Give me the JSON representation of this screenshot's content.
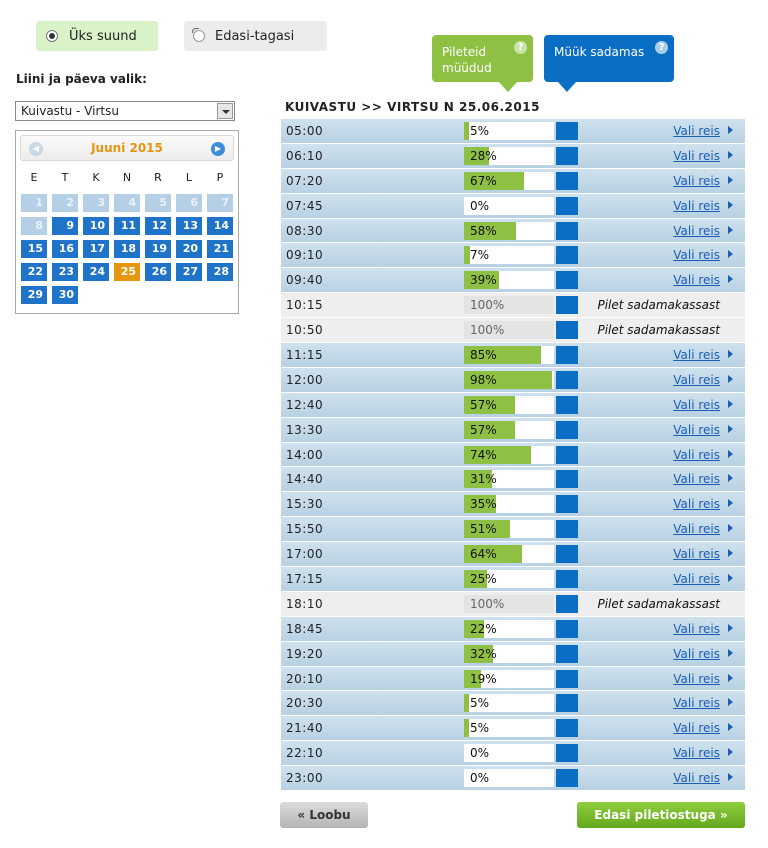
{
  "direction": {
    "one_way": "Üks suund",
    "round_trip": "Edasi-tagasi"
  },
  "legend": {
    "sold": "Pileteid müüdud",
    "harbor": "Müük sadamas",
    "help": "?"
  },
  "route": {
    "label": "Liini ja päeva valik:",
    "selected": "Kuivastu - Virtsu"
  },
  "calendar": {
    "title": "Juuni 2015",
    "weekdays": [
      "E",
      "T",
      "K",
      "N",
      "R",
      "L",
      "P"
    ],
    "past_days": [
      "1",
      "2",
      "3",
      "4",
      "5",
      "6",
      "7",
      "8"
    ],
    "available_days": [
      "9",
      "10",
      "11",
      "12",
      "13",
      "14",
      "15",
      "16",
      "17",
      "18",
      "19",
      "20",
      "21",
      "22",
      "23",
      "24",
      "25",
      "26",
      "27",
      "28",
      "29",
      "30"
    ],
    "selected_day": "25"
  },
  "schedule": {
    "title": "KUIVASTU >> VIRTSU N 25.06.2015",
    "link_label": "Vali reis",
    "harbor_note": "Pilet sadamakassast",
    "rows": [
      {
        "time": "05:00",
        "pct": 5,
        "pct_label": "5%",
        "online": true
      },
      {
        "time": "06:10",
        "pct": 28,
        "pct_label": "28%",
        "online": true
      },
      {
        "time": "07:20",
        "pct": 67,
        "pct_label": "67%",
        "online": true
      },
      {
        "time": "07:45",
        "pct": 0,
        "pct_label": "0%",
        "online": true
      },
      {
        "time": "08:30",
        "pct": 58,
        "pct_label": "58%",
        "online": true
      },
      {
        "time": "09:10",
        "pct": 7,
        "pct_label": "7%",
        "online": true
      },
      {
        "time": "09:40",
        "pct": 39,
        "pct_label": "39%",
        "online": true
      },
      {
        "time": "10:15",
        "pct": 100,
        "pct_label": "100%",
        "online": false
      },
      {
        "time": "10:50",
        "pct": 100,
        "pct_label": "100%",
        "online": false
      },
      {
        "time": "11:15",
        "pct": 85,
        "pct_label": "85%",
        "online": true
      },
      {
        "time": "12:00",
        "pct": 98,
        "pct_label": "98%",
        "online": true
      },
      {
        "time": "12:40",
        "pct": 57,
        "pct_label": "57%",
        "online": true
      },
      {
        "time": "13:30",
        "pct": 57,
        "pct_label": "57%",
        "online": true
      },
      {
        "time": "14:00",
        "pct": 74,
        "pct_label": "74%",
        "online": true
      },
      {
        "time": "14:40",
        "pct": 31,
        "pct_label": "31%",
        "online": true
      },
      {
        "time": "15:30",
        "pct": 35,
        "pct_label": "35%",
        "online": true
      },
      {
        "time": "15:50",
        "pct": 51,
        "pct_label": "51%",
        "online": true
      },
      {
        "time": "17:00",
        "pct": 64,
        "pct_label": "64%",
        "online": true
      },
      {
        "time": "17:15",
        "pct": 25,
        "pct_label": "25%",
        "online": true
      },
      {
        "time": "18:10",
        "pct": 100,
        "pct_label": "100%",
        "online": false
      },
      {
        "time": "18:45",
        "pct": 22,
        "pct_label": "22%",
        "online": true
      },
      {
        "time": "19:20",
        "pct": 32,
        "pct_label": "32%",
        "online": true
      },
      {
        "time": "20:10",
        "pct": 19,
        "pct_label": "19%",
        "online": true
      },
      {
        "time": "20:30",
        "pct": 5,
        "pct_label": "5%",
        "online": true
      },
      {
        "time": "21:40",
        "pct": 5,
        "pct_label": "5%",
        "online": true
      },
      {
        "time": "22:10",
        "pct": 0,
        "pct_label": "0%",
        "online": true
      },
      {
        "time": "23:00",
        "pct": 0,
        "pct_label": "0%",
        "online": true
      }
    ]
  },
  "buttons": {
    "cancel": "« Loobu",
    "next": "Edasi piletiostuga »"
  },
  "colors": {
    "sold_green": "#8ec044",
    "harbor_blue": "#0a6ec5",
    "selected_day": "#e7960f",
    "link": "#1a5fb4"
  }
}
